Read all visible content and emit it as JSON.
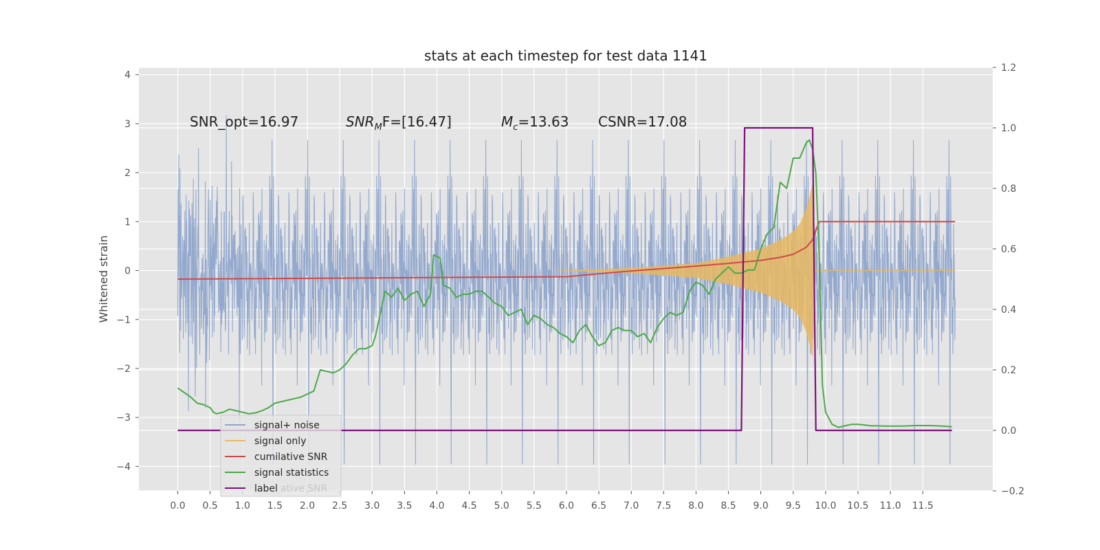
{
  "chart_data": {
    "type": "line",
    "title": "stats at each timestep for test data 1141",
    "xlabel": "",
    "ylabel": "Whitened strain",
    "xlim": [
      -0.6,
      12.58
    ],
    "ylim": [
      -4.5,
      4.15
    ],
    "y2lim": [
      -0.2,
      1.2
    ],
    "x_ticks": [
      "0.0",
      "0.5",
      "1.0",
      "1.5",
      "2.0",
      "2.5",
      "3.0",
      "3.5",
      "4.0",
      "4.5",
      "5.0",
      "5.5",
      "6.0",
      "6.5",
      "7.0",
      "7.5",
      "8.0",
      "8.5",
      "9.0",
      "9.5",
      "10.0",
      "10.5",
      "11.0",
      "11.5"
    ],
    "y_ticks": [
      "4",
      "3",
      "2",
      "1",
      "0",
      "−1",
      "−2",
      "−3",
      "−4"
    ],
    "y2_ticks": [
      "1.2",
      "1.0",
      "0.8",
      "0.6",
      "0.4",
      "0.2",
      "0.0",
      "−0.2"
    ],
    "grid": true,
    "legend_position": "lower-left",
    "annotations": {
      "snr_opt": "SNR_opt=16.97",
      "snr_mf_sym": "SNR",
      "snr_mf_sub": "M",
      "snr_mf_rest": "F=[16.47]",
      "mc_sym": "M",
      "mc_sub": "c",
      "mc_rest": "=13.63",
      "csnr": "CSNR=17.08"
    },
    "series": [
      {
        "name": "signal+ noise",
        "color": "#8fa5cc",
        "axis": "left",
        "note_values": "dense white noise, amplitude about ±2 (peaks ±3.8), x from 0.0 to 12.0"
      },
      {
        "name": "signal only",
        "color": "#e8b960",
        "axis": "left",
        "x": [
          5.8,
          7.0,
          8.0,
          8.5,
          9.0,
          9.3,
          9.5,
          9.6,
          9.7,
          9.75,
          9.8,
          9.85
        ],
        "envelope": [
          0.0,
          0.05,
          0.15,
          0.28,
          0.45,
          0.62,
          0.8,
          0.95,
          1.25,
          1.5,
          1.8,
          0.0
        ]
      },
      {
        "name": "cumilative SNR",
        "color": "#d04848",
        "axis": "right",
        "x": [
          0.0,
          6.0,
          6.5,
          7.0,
          7.5,
          8.0,
          8.5,
          9.0,
          9.3,
          9.5,
          9.7,
          9.8,
          9.85,
          9.9,
          12.0
        ],
        "y": [
          0.5,
          0.508,
          0.518,
          0.527,
          0.535,
          0.543,
          0.552,
          0.562,
          0.572,
          0.582,
          0.605,
          0.63,
          0.66,
          0.69,
          0.69
        ]
      },
      {
        "name": "signal statistics",
        "color": "#4aa84a",
        "axis": "right",
        "x": [
          0.0,
          0.1,
          0.2,
          0.3,
          0.4,
          0.5,
          0.55,
          0.6,
          0.7,
          0.8,
          0.9,
          1.0,
          1.1,
          1.2,
          1.3,
          1.4,
          1.5,
          1.6,
          1.7,
          1.8,
          1.9,
          2.0,
          2.1,
          2.2,
          2.3,
          2.4,
          2.5,
          2.6,
          2.7,
          2.8,
          2.9,
          3.0,
          3.05,
          3.1,
          3.2,
          3.3,
          3.4,
          3.5,
          3.6,
          3.7,
          3.8,
          3.9,
          3.95,
          4.05,
          4.1,
          4.2,
          4.3,
          4.4,
          4.5,
          4.6,
          4.7,
          4.8,
          4.9,
          5.0,
          5.1,
          5.2,
          5.3,
          5.4,
          5.5,
          5.6,
          5.7,
          5.8,
          5.9,
          6.0,
          6.1,
          6.2,
          6.3,
          6.4,
          6.5,
          6.6,
          6.7,
          6.8,
          6.9,
          7.0,
          7.1,
          7.2,
          7.3,
          7.4,
          7.5,
          7.6,
          7.7,
          7.8,
          7.9,
          8.0,
          8.1,
          8.2,
          8.3,
          8.4,
          8.5,
          8.6,
          8.7,
          8.8,
          8.9,
          9.0,
          9.1,
          9.2,
          9.3,
          9.4,
          9.5,
          9.6,
          9.7,
          9.75,
          9.8,
          9.85,
          9.9,
          9.95,
          10.0,
          10.1,
          10.2,
          10.3,
          10.4,
          10.5,
          10.6,
          10.7,
          10.8,
          10.9,
          11.0,
          11.2,
          11.4,
          11.6,
          11.8,
          11.95
        ],
        "y": [
          0.14,
          0.125,
          0.11,
          0.09,
          0.085,
          0.075,
          0.06,
          0.055,
          0.06,
          0.07,
          0.065,
          0.06,
          0.055,
          0.058,
          0.065,
          0.075,
          0.09,
          0.095,
          0.1,
          0.105,
          0.11,
          0.12,
          0.13,
          0.2,
          0.195,
          0.19,
          0.2,
          0.22,
          0.25,
          0.27,
          0.27,
          0.28,
          0.31,
          0.36,
          0.46,
          0.44,
          0.47,
          0.43,
          0.45,
          0.46,
          0.41,
          0.45,
          0.58,
          0.57,
          0.48,
          0.47,
          0.44,
          0.45,
          0.45,
          0.46,
          0.46,
          0.44,
          0.42,
          0.41,
          0.38,
          0.39,
          0.4,
          0.35,
          0.38,
          0.37,
          0.35,
          0.34,
          0.32,
          0.31,
          0.29,
          0.33,
          0.35,
          0.31,
          0.28,
          0.29,
          0.33,
          0.34,
          0.33,
          0.33,
          0.31,
          0.32,
          0.29,
          0.34,
          0.37,
          0.39,
          0.38,
          0.39,
          0.46,
          0.49,
          0.48,
          0.45,
          0.5,
          0.52,
          0.54,
          0.52,
          0.52,
          0.53,
          0.53,
          0.6,
          0.65,
          0.67,
          0.82,
          0.8,
          0.9,
          0.9,
          0.95,
          0.96,
          0.93,
          0.85,
          0.58,
          0.15,
          0.06,
          0.02,
          0.01,
          0.015,
          0.02,
          0.02,
          0.018,
          0.015,
          0.015,
          0.014,
          0.014,
          0.014,
          0.016,
          0.016,
          0.014,
          0.012
        ]
      },
      {
        "name": "label",
        "color": "#7b107b",
        "axis": "right",
        "x": [
          0.0,
          8.7,
          8.75,
          9.8,
          9.85,
          11.95
        ],
        "y": [
          0.0,
          0.0,
          1.0,
          1.0,
          0.0,
          0.0
        ]
      }
    ],
    "legend_hidden_entry": "cumilative SNR"
  }
}
